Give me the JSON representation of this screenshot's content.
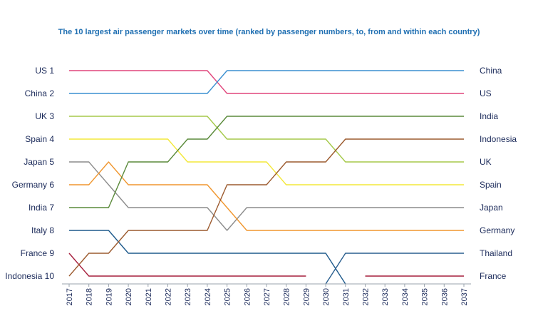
{
  "chart_data": {
    "type": "line",
    "title": "The 10 largest air passenger markets over time (ranked by passenger numbers, to, from and within each country)",
    "xlabel": "",
    "ylabel": "",
    "x": [
      "2017",
      "2018",
      "2019",
      "2020",
      "2021",
      "2022",
      "2023",
      "2024",
      "2025",
      "2026",
      "2027",
      "2028",
      "2029",
      "2030",
      "2031",
      "2032",
      "2033",
      "2034",
      "2035",
      "2036",
      "2037"
    ],
    "ylim": [
      1,
      10
    ],
    "y_inverted": true,
    "left_labels": [
      "US  1",
      "China  2",
      "UK  3",
      "Spain  4",
      "Japan  5",
      "Germany  6",
      "India  7",
      "Italy  8",
      "France  9",
      "Indonesia  10"
    ],
    "right_labels": [
      "China",
      "US",
      "India",
      "Indonesia",
      "UK",
      "Spain",
      "Japan",
      "Germany",
      "Thailand",
      "France"
    ],
    "grid": false,
    "legend": "none",
    "series": [
      {
        "name": "US",
        "color": "#e0457b",
        "values": [
          1,
          1,
          1,
          1,
          1,
          1,
          1,
          1,
          2,
          2,
          2,
          2,
          2,
          2,
          2,
          2,
          2,
          2,
          2,
          2,
          2
        ]
      },
      {
        "name": "China",
        "color": "#3a8fd0",
        "values": [
          2,
          2,
          2,
          2,
          2,
          2,
          2,
          2,
          1,
          1,
          1,
          1,
          1,
          1,
          1,
          1,
          1,
          1,
          1,
          1,
          1
        ]
      },
      {
        "name": "UK",
        "color": "#a5c94a",
        "values": [
          3,
          3,
          3,
          3,
          3,
          3,
          3,
          3,
          4,
          4,
          4,
          4,
          4,
          4,
          5,
          5,
          5,
          5,
          5,
          5,
          5
        ]
      },
      {
        "name": "Spain",
        "color": "#f3e83a",
        "values": [
          4,
          4,
          4,
          4,
          4,
          4,
          5,
          5,
          5,
          5,
          5,
          6,
          6,
          6,
          6,
          6,
          6,
          6,
          6,
          6,
          6
        ]
      },
      {
        "name": "Japan",
        "color": "#8c8c8c",
        "values": [
          5,
          5,
          6,
          7,
          7,
          7,
          7,
          7,
          8,
          7,
          7,
          7,
          7,
          7,
          7,
          7,
          7,
          7,
          7,
          7,
          7
        ]
      },
      {
        "name": "Germany",
        "color": "#f0962e",
        "values": [
          6,
          6,
          5,
          6,
          6,
          6,
          6,
          6,
          7,
          8,
          8,
          8,
          8,
          8,
          8,
          8,
          8,
          8,
          8,
          8,
          8
        ]
      },
      {
        "name": "India",
        "color": "#5a8a3a",
        "values": [
          7,
          7,
          7,
          5,
          5,
          5,
          4,
          4,
          3,
          3,
          3,
          3,
          3,
          3,
          3,
          3,
          3,
          3,
          3,
          3,
          3
        ]
      },
      {
        "name": "Italy",
        "color": "#1e5a8c",
        "values": [
          8,
          8,
          8,
          9,
          9,
          9,
          9,
          9,
          9,
          9,
          9,
          9,
          9,
          9,
          11,
          null,
          null,
          null,
          null,
          null,
          null
        ]
      },
      {
        "name": "France",
        "color": "#a61e3c",
        "values": [
          9,
          10,
          10,
          10,
          10,
          10,
          10,
          10,
          10,
          10,
          10,
          10,
          10,
          null,
          null,
          10,
          10,
          10,
          10,
          10,
          10
        ]
      },
      {
        "name": "Indonesia",
        "color": "#9c5a2e",
        "values": [
          10,
          9,
          9,
          8,
          8,
          8,
          8,
          8,
          6,
          6,
          6,
          5,
          5,
          5,
          4,
          4,
          4,
          4,
          4,
          4,
          4
        ]
      },
      {
        "name": "Thailand",
        "color": "#2a5f8f",
        "values": [
          null,
          null,
          null,
          null,
          null,
          null,
          null,
          null,
          null,
          null,
          null,
          null,
          null,
          11,
          9,
          9,
          9,
          9,
          9,
          9,
          9
        ]
      }
    ]
  }
}
